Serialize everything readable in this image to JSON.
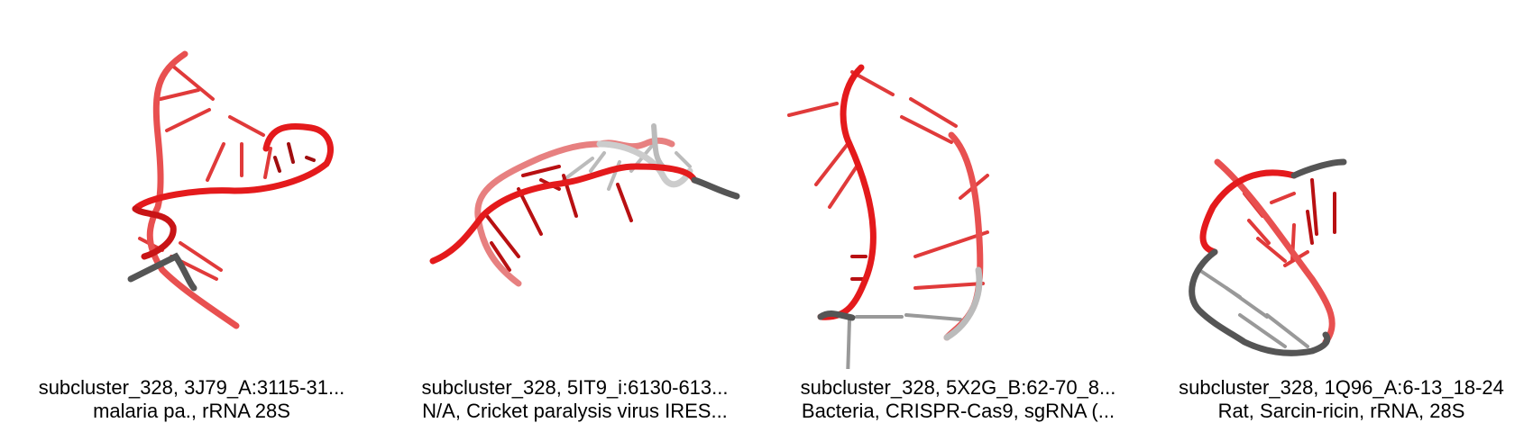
{
  "panels": [
    {
      "caption_line1": "subcluster_328, 3J79_A:3115-31...",
      "caption_line2": "malaria pa., rRNA 28S"
    },
    {
      "caption_line1": "subcluster_328, 5IT9_i:6130-613...",
      "caption_line2": "N/A, Cricket paralysis virus IRES..."
    },
    {
      "caption_line1": "subcluster_328, 5X2G_B:62-70_8...",
      "caption_line2": "Bacteria, CRISPR-Cas9, sgRNA (..."
    },
    {
      "caption_line1": "subcluster_328, 1Q96_A:6-13_18-24",
      "caption_line2": "Rat, Sarcin-ricin, rRNA, 28S"
    }
  ],
  "colors": {
    "backbone_red": "#e41a1c",
    "light_red": "#f07a7a",
    "dark_red": "#a00d0f",
    "gray": "#555555",
    "light_gray": "#bbbbbb"
  }
}
